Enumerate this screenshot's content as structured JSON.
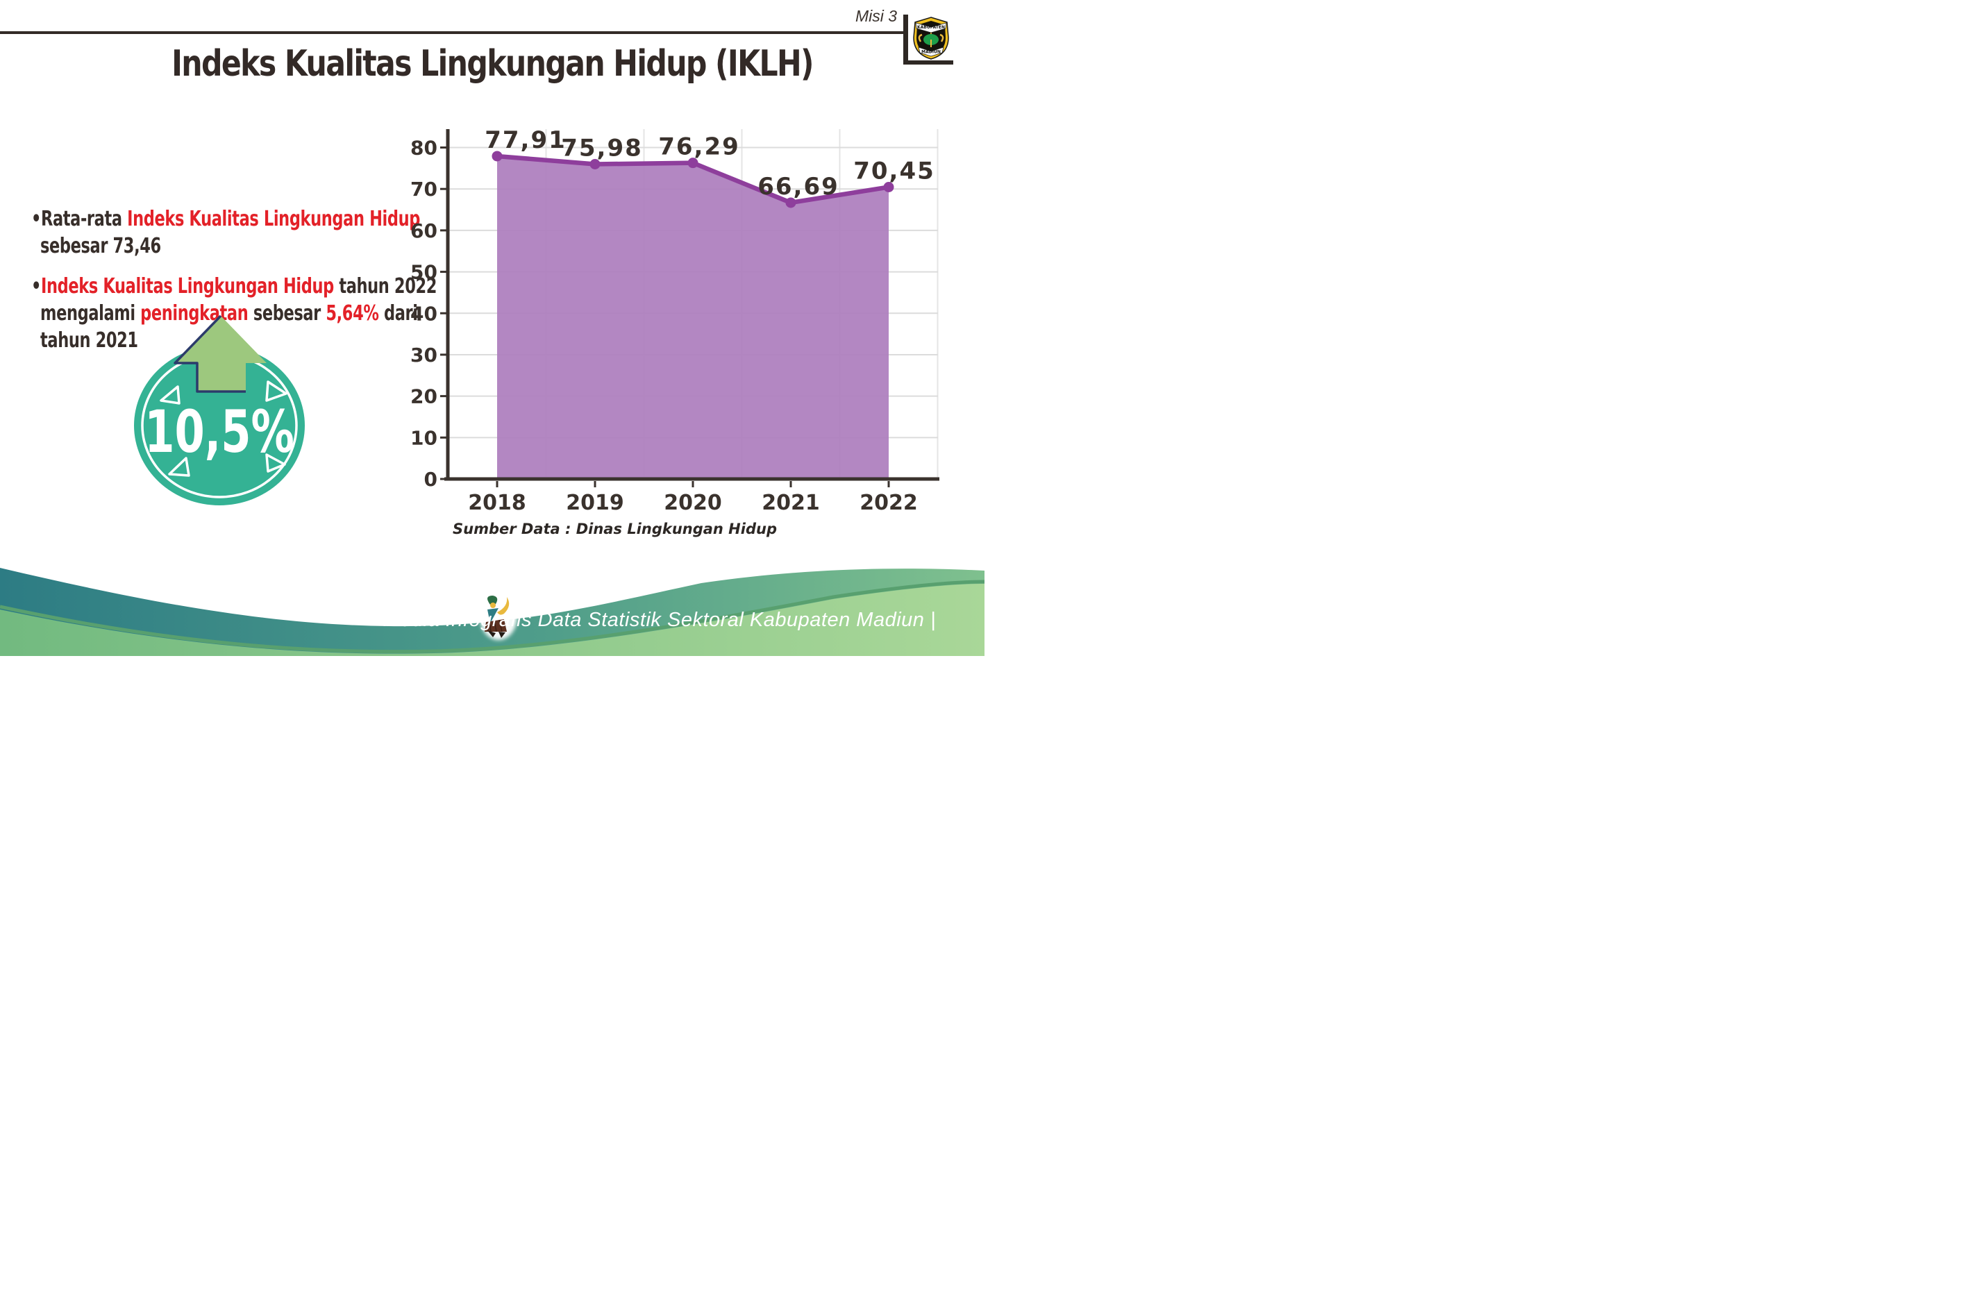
{
  "header": {
    "misi_label": "Misi 3",
    "title": "Indeks Kualitas Lingkungan Hidup (IKLH)",
    "logo": {
      "top_text": "KABUPATEN",
      "bottom_text": "MADIUN"
    }
  },
  "bullets": {
    "bullet_char": "•",
    "b1": {
      "pre": "Rata-rata ",
      "red": "Indeks Kualitas Lingkungan Hidup",
      "line2": "sebesar 73,46"
    },
    "b2": {
      "red1": "Indeks Kualitas Lingkungan Hidup",
      "post1": " tahun 2022",
      "pre2": "mengalami ",
      "red2": "peningkatan",
      "mid2": " sebesar ",
      "red3": "5,64%",
      "post2": " dari",
      "line3": "tahun 2021"
    }
  },
  "badge": {
    "value": "10,5%"
  },
  "chart_data": {
    "type": "area",
    "title": "",
    "categories": [
      "2018",
      "2019",
      "2020",
      "2021",
      "2022"
    ],
    "series": [
      {
        "name": "IKLH",
        "values": [
          77.91,
          75.98,
          76.29,
          66.69,
          70.45
        ]
      }
    ],
    "value_labels": [
      "77,91",
      "75,98",
      "76,29",
      "66,69",
      "70,45"
    ],
    "y_ticks": [
      "0",
      "10",
      "20",
      "30",
      "40",
      "50",
      "60",
      "70",
      "80"
    ],
    "ylim": [
      0,
      85
    ],
    "grid": true,
    "legend": "none",
    "source_note": "Sumber Data : Dinas Lingkungan Hidup"
  },
  "footer": {
    "caption": "Media Infografis Data Statistik Sektoral Kabupaten Madiun |"
  },
  "colors": {
    "text_dark": "#3a322d",
    "accent_red": "#e32128",
    "chart_line": "#8e3e9c",
    "chart_fill": "#ad7dbd",
    "gridline": "#dcdcdc",
    "badge_teal": "#34b294",
    "badge_arrow_green": "#9dc87e",
    "badge_arrow_outline": "#2c3b6b",
    "wave_teal_dark": "#2d7c84",
    "wave_teal_light": "#7fc08e",
    "wave_green_light": "#a9d798"
  }
}
